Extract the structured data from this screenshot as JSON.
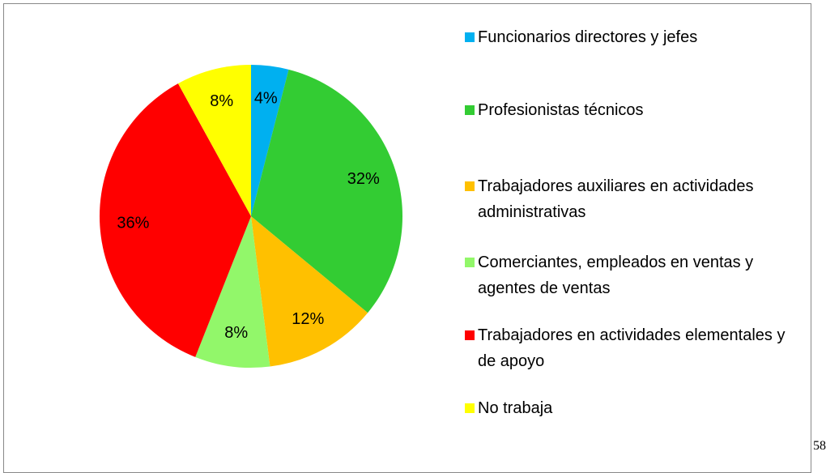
{
  "chart_data": {
    "type": "pie",
    "categories": [
      "Funcionarios directores y jefes",
      "Profesionistas técnicos",
      "Trabajadores auxiliares en actividades administrativas",
      "Comerciantes, empleados en ventas y agentes de ventas",
      "Trabajadores en actividades elementales y de apoyo",
      "No trabaja"
    ],
    "values": [
      4,
      32,
      12,
      8,
      36,
      8
    ],
    "value_labels": [
      "4%",
      "32%",
      "12%",
      "8%",
      "36%",
      "8%"
    ],
    "colors": [
      "#00b0f0",
      "#33cc33",
      "#ffc000",
      "#92f76a",
      "#ff0000",
      "#ffff00"
    ],
    "legend": "right"
  },
  "page_number": "58"
}
